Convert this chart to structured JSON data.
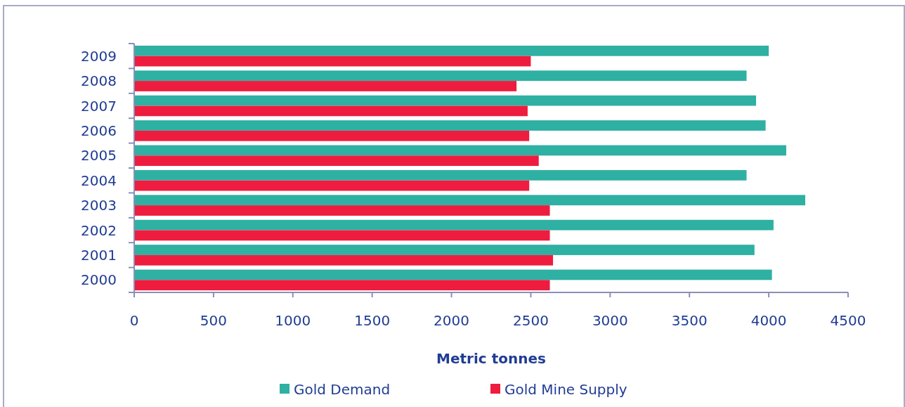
{
  "chart_data": {
    "type": "bar",
    "orientation": "horizontal",
    "xlabel": "Metric tonnes",
    "categories": [
      "2009",
      "2008",
      "2007",
      "2006",
      "2005",
      "2004",
      "2003",
      "2002",
      "2001",
      "2000"
    ],
    "series": [
      {
        "name": "Gold Demand",
        "color": "#2eb0a3",
        "values": [
          4000,
          3860,
          3920,
          3980,
          4110,
          3860,
          4230,
          4030,
          3910,
          4020
        ]
      },
      {
        "name": "Gold Mine Supply",
        "color": "#ee1c3e",
        "values": [
          2500,
          2410,
          2480,
          2490,
          2550,
          2490,
          2620,
          2620,
          2640,
          2620
        ]
      }
    ],
    "xlim": [
      0,
      4500
    ],
    "xticks": [
      0,
      500,
      1000,
      1500,
      2000,
      2500,
      3000,
      3500,
      4000,
      4500
    ],
    "legend": "bottom"
  }
}
